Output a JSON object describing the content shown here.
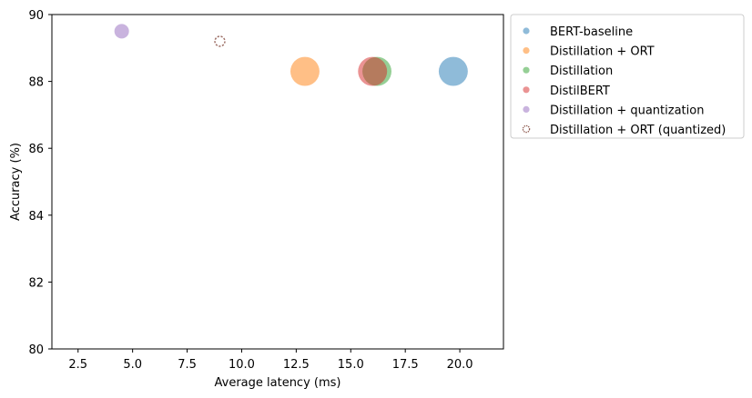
{
  "chart_data": {
    "type": "scatter",
    "xlabel": "Average latency (ms)",
    "ylabel": "Accuracy (%)",
    "xlim": [
      1.3,
      22.0
    ],
    "ylim": [
      80,
      90
    ],
    "xticks": [
      "2.5",
      "5.0",
      "7.5",
      "10.0",
      "12.5",
      "15.0",
      "17.5",
      "20.0"
    ],
    "yticks": [
      "80",
      "82",
      "84",
      "86",
      "88",
      "90"
    ],
    "grid": false,
    "legend_position": "outside-upper-right",
    "series": [
      {
        "name": "BERT-baseline",
        "color": "#1f77b4",
        "hollow": false,
        "points": [
          {
            "x": 19.7,
            "y": 88.3,
            "size": 255
          }
        ]
      },
      {
        "name": "Distillation + ORT",
        "color": "#ff7f0e",
        "hollow": false,
        "points": [
          {
            "x": 12.9,
            "y": 88.3,
            "size": 255
          }
        ]
      },
      {
        "name": "Distillation",
        "color": "#2ca02c",
        "hollow": false,
        "points": [
          {
            "x": 16.2,
            "y": 88.3,
            "size": 255
          }
        ]
      },
      {
        "name": "DistilBERT",
        "color": "#d62728",
        "hollow": false,
        "points": [
          {
            "x": 16.0,
            "y": 88.3,
            "size": 255
          }
        ]
      },
      {
        "name": "Distillation + quantization",
        "color": "#9467bd",
        "hollow": false,
        "points": [
          {
            "x": 4.5,
            "y": 89.5,
            "size": 64
          }
        ]
      },
      {
        "name": "Distillation + ORT (quantized)",
        "color": "#8c564b",
        "hollow": true,
        "points": [
          {
            "x": 9.0,
            "y": 89.2,
            "size": 30
          }
        ]
      }
    ]
  }
}
